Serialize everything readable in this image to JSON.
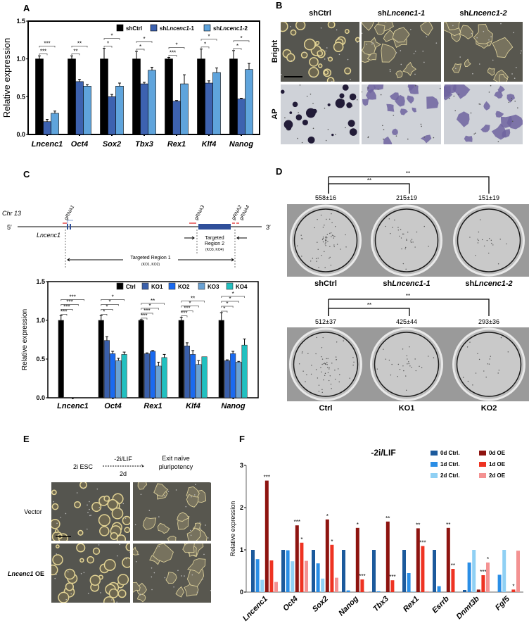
{
  "panel_labels": [
    "A",
    "B",
    "C",
    "D",
    "E",
    "F"
  ],
  "panel_b": {
    "columns": [
      {
        "prefix": "sh",
        "italic": "",
        "plain": "Ctrl"
      },
      {
        "prefix": "sh",
        "italic": "Lncenc1-1",
        "plain": ""
      },
      {
        "prefix": "sh",
        "italic": "Lncenc1-2",
        "plain": ""
      }
    ],
    "rows": [
      "Bright",
      "AP"
    ]
  },
  "panel_c_diagram": {
    "chromosome": "Chr 13",
    "five_prime": "5′",
    "three_prime": "3′",
    "gene": "Lncenc1",
    "grnas": [
      "gRNA1",
      "gRNA3",
      "gRNA2",
      "gRNA4"
    ],
    "region2_lines": [
      "Targeted",
      "Region 2",
      "(KO3, KO4)"
    ],
    "region1": "Targeted Region 1",
    "region1_sub": "(KO1, KO2)",
    "colors": {
      "gene": "#2f4f9a",
      "grna": "#e03030"
    }
  },
  "panel_d": {
    "top": {
      "counts": [
        "558±16",
        "215±19",
        "151±19"
      ],
      "significance": [
        "**",
        "**"
      ],
      "labels": [
        {
          "prefix": "sh",
          "italic": "",
          "plain": "Ctrl"
        },
        {
          "prefix": "sh",
          "italic": "Lncenc1-1",
          "plain": ""
        },
        {
          "prefix": "sh",
          "italic": "Lncenc1-2",
          "plain": ""
        }
      ]
    },
    "bottom": {
      "counts": [
        "512±37",
        "425±44",
        "293±36"
      ],
      "significance": [
        "**",
        "**"
      ],
      "labels": [
        {
          "prefix": "",
          "italic": "",
          "plain": "Ctrl"
        },
        {
          "prefix": "",
          "italic": "",
          "plain": "KO1"
        },
        {
          "prefix": "",
          "italic": "",
          "plain": "KO2"
        }
      ]
    }
  },
  "panel_e": {
    "start": "2i ESC",
    "treatment": "-2i/LIF",
    "duration": "2d",
    "end_lines": [
      "Exit naïve",
      "pluripotency"
    ],
    "rows": [
      {
        "italic": "",
        "plain": "Vector"
      },
      {
        "italic": "Lncenc1",
        "plain": " OE"
      }
    ]
  },
  "chart_data": [
    {
      "type": "bar",
      "title": "",
      "ylabel": "Relative expression",
      "ylim": [
        0,
        1.5
      ],
      "yticks": [
        "0.0",
        "0.5",
        "1.0",
        "1.5"
      ],
      "categories": [
        "Lncenc1",
        "Oct4",
        "Sox2",
        "Tbx3",
        "Rex1",
        "Klf4",
        "Nanog"
      ],
      "legend_position": "top-right",
      "series": [
        {
          "name": "shCtrl",
          "legend": {
            "prefix": "sh",
            "italic": "",
            "plain": "Ctrl"
          },
          "color": "#000000",
          "values": [
            1.0,
            1.0,
            1.0,
            1.0,
            1.0,
            1.0,
            1.0
          ],
          "errors": [
            0.04,
            0.04,
            0.14,
            0.1,
            0.02,
            0.13,
            0.11
          ]
        },
        {
          "name": "shLncenc1-1",
          "legend": {
            "prefix": "sh",
            "italic": "Lncenc1",
            "plain": "-1"
          },
          "color": "#3d62b0",
          "values": [
            0.17,
            0.7,
            0.5,
            0.67,
            0.44,
            0.68,
            0.47
          ],
          "errors": [
            0.03,
            0.03,
            0.03,
            0.02,
            0.01,
            0.03,
            0.01
          ]
        },
        {
          "name": "shLncenc1-2",
          "legend": {
            "prefix": "sh",
            "italic": "Lncenc1",
            "plain": "-2"
          },
          "color": "#5fa4dc",
          "values": [
            0.28,
            0.64,
            0.64,
            0.85,
            0.67,
            0.82,
            0.86
          ],
          "errors": [
            0.03,
            0.02,
            0.04,
            0.04,
            0.12,
            0.06,
            0.08
          ]
        }
      ],
      "significance": [
        [
          "***",
          "***"
        ],
        [
          "**",
          "**"
        ],
        [
          "*",
          "*"
        ],
        [
          "*",
          "*"
        ],
        [
          "***",
          "*"
        ],
        [
          "*",
          "*"
        ],
        [
          "*",
          "*"
        ]
      ]
    },
    {
      "type": "bar",
      "title": "",
      "ylabel": "Relative expression",
      "ylim": [
        0,
        1.5
      ],
      "yticks": [
        "0.0",
        "0.5",
        "1.0",
        "1.5"
      ],
      "categories": [
        "Lncenc1",
        "Oct4",
        "Rex1",
        "Klf4",
        "Nanog"
      ],
      "legend_position": "top-right",
      "series": [
        {
          "name": "Ctrl",
          "color": "#000000",
          "values": [
            1.0,
            1.0,
            1.0,
            1.0,
            1.0
          ],
          "errors": [
            0.06,
            0.06,
            0.01,
            0.04,
            0.1
          ]
        },
        {
          "name": "KO1",
          "color": "#3a5faa",
          "values": [
            0,
            0.74,
            0.57,
            0.67,
            0.48
          ],
          "errors": [
            0,
            0.05,
            0.01,
            0.04,
            0.01
          ]
        },
        {
          "name": "KO2",
          "color": "#1a6af0",
          "values": [
            0,
            0.57,
            0.6,
            0.56,
            0.57
          ],
          "errors": [
            0,
            0.03,
            0.01,
            0.05,
            0.03
          ]
        },
        {
          "name": "KO3",
          "color": "#6aa2d4",
          "values": [
            0,
            0.48,
            0.41,
            0.43,
            0.46
          ],
          "errors": [
            0,
            0.03,
            0.05,
            0.05,
            0.01
          ]
        },
        {
          "name": "KO4",
          "color": "#22c0c0",
          "values": [
            0,
            0.56,
            0.52,
            0.53,
            0.68
          ],
          "errors": [
            0,
            0.03,
            0.04,
            0,
            0.08
          ]
        }
      ],
      "significance": [
        [
          "***",
          "***",
          "***",
          "***"
        ],
        [
          "*",
          "*",
          "*",
          "*"
        ],
        [
          "***",
          "***",
          "*",
          "**"
        ],
        [
          "***",
          "***",
          "*",
          "**"
        ],
        [
          "*",
          "*",
          "*",
          "*"
        ]
      ]
    },
    {
      "type": "bar",
      "title": "-2i/LIF",
      "ylabel": "Relative expression",
      "ylim": [
        0,
        3
      ],
      "yticks": [
        "0",
        "1",
        "2",
        "3"
      ],
      "categories": [
        "Lncenc1",
        "Oct4",
        "Sox2",
        "Nanog",
        "Tbx3",
        "Rex1",
        "Esrrb",
        "Dnmt3b",
        "Fgf5"
      ],
      "legend_position": "top-right",
      "series": [
        {
          "name": "0d Ctrl.",
          "color": "#1c5a9c",
          "values": [
            1.0,
            1.0,
            1.0,
            1.0,
            1.0,
            1.0,
            1.0,
            0.05,
            0.0
          ],
          "stars": [
            "",
            "",
            "",
            "",
            "",
            "",
            "",
            "",
            ""
          ]
        },
        {
          "name": "1d Ctrl.",
          "color": "#2a8ee6",
          "values": [
            0.78,
            0.99,
            0.68,
            0.04,
            0.02,
            0.45,
            0.14,
            0.7,
            0.41
          ],
          "stars": [
            "",
            "",
            "",
            "",
            "",
            "",
            "",
            "",
            ""
          ]
        },
        {
          "name": "2d Ctrl.",
          "color": "#8fd0f4",
          "values": [
            0.29,
            0.73,
            0.32,
            0.0,
            0.0,
            0.02,
            0.0,
            1.0,
            1.0
          ],
          "stars": [
            "",
            "",
            "",
            "",
            "",
            "",
            "",
            "",
            ""
          ]
        },
        {
          "name": "0d OE",
          "color": "#8e1410",
          "values": [
            2.64,
            1.58,
            1.72,
            1.52,
            1.67,
            1.51,
            1.52,
            0.06,
            0.0
          ],
          "stars": [
            "***",
            "***",
            "*",
            "*",
            "**",
            "**",
            "**",
            "",
            ""
          ]
        },
        {
          "name": "1d OE",
          "color": "#ee3322",
          "values": [
            0.75,
            1.17,
            1.12,
            0.3,
            0.28,
            1.09,
            0.55,
            0.4,
            0.06
          ],
          "stars": [
            "",
            "*",
            "*",
            "***",
            "***",
            "***",
            "**",
            "***",
            "*"
          ]
        },
        {
          "name": "2d OE",
          "color": "#f49292",
          "values": [
            0.24,
            0.74,
            0.34,
            0.01,
            0.0,
            0.02,
            0.0,
            0.7,
            0.98
          ],
          "stars": [
            "",
            "",
            "",
            "",
            "",
            "",
            "",
            "*",
            ""
          ]
        }
      ]
    }
  ]
}
